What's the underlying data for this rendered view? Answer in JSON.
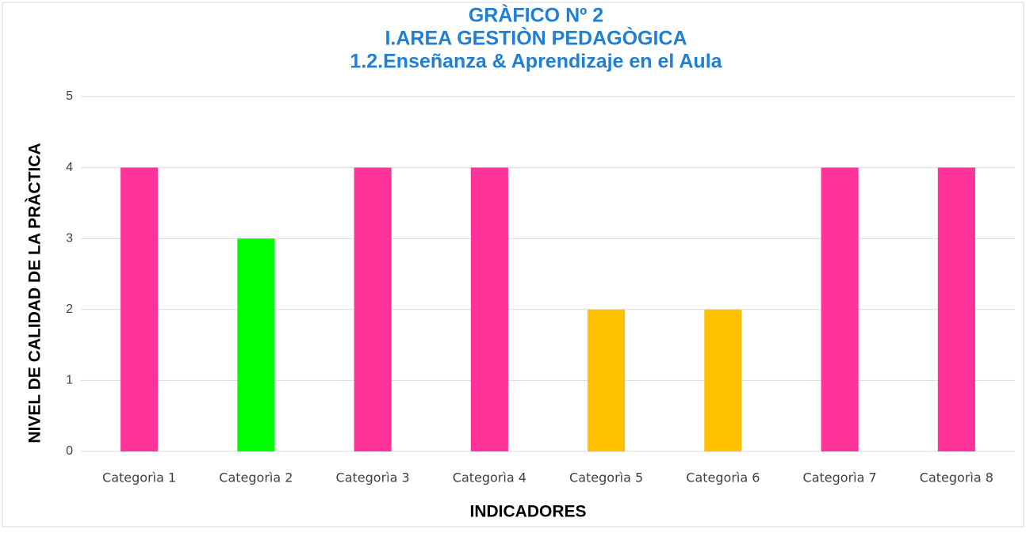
{
  "chart_data": {
    "type": "bar",
    "title": [
      "GRÀFICO Nº 2",
      "I.AREA GESTIÒN PEDAGÒGICA",
      "1.2.Enseñanza & Aprendizaje en el Aula"
    ],
    "x_label": "INDICADORES",
    "y_label": "NIVEL DE CALIDAD DE LA PRÀCTICA",
    "categories": [
      "Categorìa 1",
      "Categorìa 2",
      "Categorìa 3",
      "Categorìa 4",
      "Categorìa 5",
      "Categorìa 6",
      "Categorìa 7",
      "Categorìa 8"
    ],
    "values": [
      4,
      3,
      4,
      4,
      2,
      2,
      4,
      4
    ],
    "colors": [
      "#ff3399",
      "#00ff00",
      "#ff3399",
      "#ff3399",
      "#ffc000",
      "#ffc000",
      "#ff3399",
      "#ff3399"
    ],
    "ylim": [
      0,
      5
    ],
    "yticks": [
      0,
      1,
      2,
      3,
      4,
      5
    ],
    "grid": true
  }
}
